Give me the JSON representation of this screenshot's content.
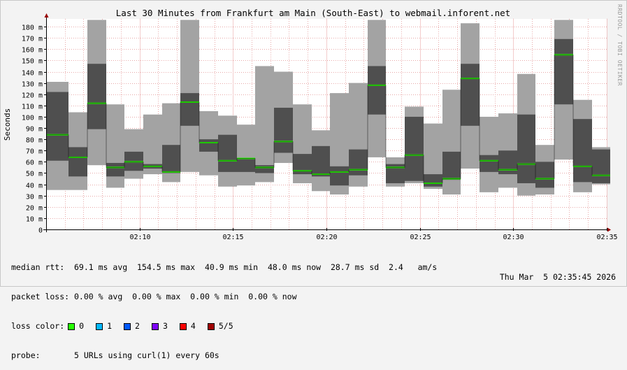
{
  "chart_data": {
    "type": "bar",
    "title": "Last 30 Minutes from Frankfurt am Main (South-East) to webmail.inforent.net",
    "ylabel": "Seconds",
    "xlabel": "",
    "ylim": [
      0,
      185
    ],
    "yticks": [
      0,
      10,
      20,
      30,
      40,
      50,
      60,
      70,
      80,
      90,
      100,
      110,
      120,
      130,
      140,
      150,
      160,
      170,
      180
    ],
    "ytick_labels": [
      "0",
      "10 m",
      "20 m",
      "30 m",
      "40 m",
      "50 m",
      "60 m",
      "70 m",
      "80 m",
      "90 m",
      "100 m",
      "110 m",
      "120 m",
      "130 m",
      "140 m",
      "150 m",
      "160 m",
      "170 m",
      "180 m"
    ],
    "xticks": [
      {
        "label": "02:10",
        "minute": 10
      },
      {
        "label": "02:15",
        "minute": 15
      },
      {
        "label": "02:20",
        "minute": 20
      },
      {
        "label": "02:25",
        "minute": 25
      },
      {
        "label": "02:30",
        "minute": 30
      },
      {
        "label": "02:35",
        "minute": 35
      }
    ],
    "x_range_minutes": [
      5.0,
      35.6
    ],
    "grid": true,
    "series_description": "per-minute smokeping samples: min/max range (light grey), inner spread (dark grey), median (green)",
    "samples": [
      {
        "minute": 5.5,
        "min": 35,
        "max": 131,
        "q_low": 61,
        "q_high": 122,
        "median": 84
      },
      {
        "minute": 6.2,
        "min": 35,
        "max": 104,
        "q_low": 47,
        "q_high": 73,
        "median": 64
      },
      {
        "minute": 7.2,
        "min": 57,
        "max": 186,
        "q_low": 89,
        "q_high": 147,
        "median": 112
      },
      {
        "minute": 8.2,
        "min": 37,
        "max": 111,
        "q_low": 47,
        "q_high": 59,
        "median": 55
      },
      {
        "minute": 9.2,
        "min": 45,
        "max": 89,
        "q_low": 52,
        "q_high": 69,
        "median": 60
      },
      {
        "minute": 10.2,
        "min": 49,
        "max": 102,
        "q_low": 54,
        "q_high": 58,
        "median": 56
      },
      {
        "minute": 11.2,
        "min": 42,
        "max": 112,
        "q_low": 50,
        "q_high": 75,
        "median": 51
      },
      {
        "minute": 12.2,
        "min": 51,
        "max": 186,
        "q_low": 92,
        "q_high": 121,
        "median": 113
      },
      {
        "minute": 13.2,
        "min": 48,
        "max": 105,
        "q_low": 69,
        "q_high": 80,
        "median": 77
      },
      {
        "minute": 14.2,
        "min": 38,
        "max": 101,
        "q_low": 51,
        "q_high": 84,
        "median": 61
      },
      {
        "minute": 15.2,
        "min": 39,
        "max": 93,
        "q_low": 51,
        "q_high": 63,
        "median": 63
      },
      {
        "minute": 16.2,
        "min": 42,
        "max": 145,
        "q_low": 50,
        "q_high": 57,
        "median": 55
      },
      {
        "minute": 17.2,
        "min": 59,
        "max": 140,
        "q_low": 68,
        "q_high": 108,
        "median": 78
      },
      {
        "minute": 18.2,
        "min": 41,
        "max": 111,
        "q_low": 49,
        "q_high": 67,
        "median": 52
      },
      {
        "minute": 19.2,
        "min": 34,
        "max": 88,
        "q_low": 47,
        "q_high": 74,
        "median": 49
      },
      {
        "minute": 20.2,
        "min": 31,
        "max": 121,
        "q_low": 39,
        "q_high": 56,
        "median": 51
      },
      {
        "minute": 21.2,
        "min": 38,
        "max": 130,
        "q_low": 48,
        "q_high": 71,
        "median": 53
      },
      {
        "minute": 22.2,
        "min": 64,
        "max": 186,
        "q_low": 102,
        "q_high": 145,
        "median": 128
      },
      {
        "minute": 23.2,
        "min": 38,
        "max": 64,
        "q_low": 41,
        "q_high": 58,
        "median": 55
      },
      {
        "minute": 24.2,
        "min": 41,
        "max": 109,
        "q_low": 43,
        "q_high": 100,
        "median": 66
      },
      {
        "minute": 25.2,
        "min": 36,
        "max": 94,
        "q_low": 38,
        "q_high": 49,
        "median": 41
      },
      {
        "minute": 26.2,
        "min": 31,
        "max": 124,
        "q_low": 44,
        "q_high": 69,
        "median": 45
      },
      {
        "minute": 27.2,
        "min": 54,
        "max": 183,
        "q_low": 92,
        "q_high": 147,
        "median": 134
      },
      {
        "minute": 28.2,
        "min": 33,
        "max": 100,
        "q_low": 51,
        "q_high": 66,
        "median": 61
      },
      {
        "minute": 29.2,
        "min": 37,
        "max": 103,
        "q_low": 49,
        "q_high": 70,
        "median": 53
      },
      {
        "minute": 30.2,
        "min": 30,
        "max": 138,
        "q_low": 41,
        "q_high": 102,
        "median": 58
      },
      {
        "minute": 31.2,
        "min": 31,
        "max": 75,
        "q_low": 37,
        "q_high": 60,
        "median": 45
      },
      {
        "minute": 32.2,
        "min": 62,
        "max": 186,
        "q_low": 111,
        "q_high": 169,
        "median": 155
      },
      {
        "minute": 33.2,
        "min": 33,
        "max": 115,
        "q_low": 42,
        "q_high": 98,
        "median": 56
      },
      {
        "minute": 34.2,
        "min": 40,
        "max": 73,
        "q_low": 41,
        "q_high": 71,
        "median": 48
      }
    ]
  },
  "stats": {
    "median_rtt": "median rtt:  69.1 ms avg  154.5 ms max  40.9 ms min  48.0 ms now  28.7 ms sd  2.4   am/s",
    "packet_loss": "packet loss: 0.00 % avg  0.00 % max  0.00 % min  0.00 % now",
    "loss_color_label": "loss color:",
    "probe": "probe:       5 URLs using curl(1) every 60s",
    "timestamp": "Thu Mar  5 02:35:45 2026"
  },
  "loss_colors": [
    {
      "label": "0",
      "color": "#26ff00"
    },
    {
      "label": "1",
      "color": "#00b8ff"
    },
    {
      "label": "2",
      "color": "#0059ff"
    },
    {
      "label": "3",
      "color": "#7e00ff"
    },
    {
      "label": "4",
      "color": "#ff0000"
    },
    {
      "label": "5/5",
      "color": "#a10000"
    }
  ],
  "watermark": "RRDTOOL / TOBI OETIKER",
  "colors": {
    "range": "#a3a3a3",
    "spread": "#4f4f4f",
    "median": "#26ff00",
    "grid_minor": "#e8a8a8",
    "grid_major": "#e79a9a",
    "axis_arrow": "#9a0000"
  }
}
